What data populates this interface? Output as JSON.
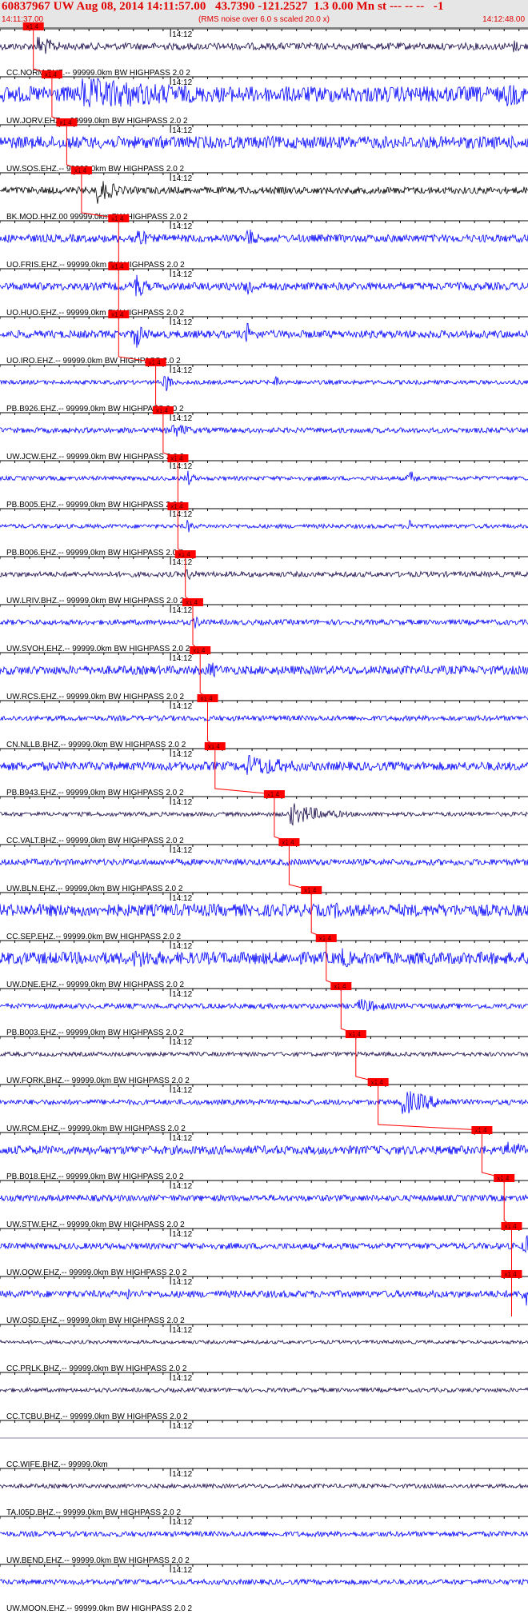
{
  "header": {
    "title": "60837967 UW Aug 08, 2014 14:11:57.00   43.7390 -121.2527  1.3 0.00 Mn st --- -- --   -1",
    "start_time": "14:11:37.00",
    "subtitle": "(RMS noise over 6.0 s scaled 20.0 x)",
    "end_time": "14:12:48.00"
  },
  "colors": {
    "header_text": "#e00000",
    "header_bg": "#e6e6e6",
    "trace_blue": "#0000ff",
    "trace_dark": "#1a0a4a",
    "trace_black": "#000000",
    "pick_box": "#ff0000",
    "pick_line": "#ff0000"
  },
  "chart_data": {
    "type": "seismogram",
    "time_window": {
      "start": "14:11:37.00",
      "end": "14:12:48.00"
    },
    "tick_label": "14:12",
    "pick_label": "x1.4",
    "traces": [
      {
        "label": "CC.NORM.BHZ.-- 99999.0km BW  HIGHPASS  2.0  2",
        "color": "dark",
        "pick": "14:11:41.5",
        "amp": 0.2,
        "burst": [
          {
            "t": "14:11:42",
            "amp": 0.7,
            "dur": 3
          },
          {
            "t": "14:12:46",
            "amp": 0.4,
            "dur": 2
          }
        ]
      },
      {
        "label": "UW.JORV.EHZ.-- 99999.0km BW  HIGHPASS  2.0  2",
        "color": "blue",
        "pick": "14:11:44",
        "amp": 0.45,
        "burst": [
          {
            "t": "14:11:48",
            "amp": 1.0,
            "dur": 20
          },
          {
            "t": "14:12:45",
            "amp": 0.9,
            "dur": 3
          }
        ]
      },
      {
        "label": "UW.SOS.EHZ.-- 99999.0km BW  HIGHPASS  2.0  2",
        "color": "blue",
        "pick": "14:11:46",
        "amp": 0.35,
        "burst": []
      },
      {
        "label": "BK.MOD.HHZ.00 99999.0km BW  HIGHPASS  2.0  2",
        "color": "black",
        "pick": "14:11:48",
        "amp": 0.2,
        "burst": [
          {
            "t": "14:11:50",
            "amp": 0.8,
            "dur": 3
          }
        ]
      },
      {
        "label": "UO.FRIS.EHZ.-- 99999.0km BW  HIGHPASS  2.0  2",
        "color": "blue",
        "pick": "14:11:53",
        "amp": 0.22,
        "burst": [
          {
            "t": "14:11:55",
            "amp": 1.0,
            "dur": 1.5
          },
          {
            "t": "14:12:10",
            "amp": 0.8,
            "dur": 1.5
          }
        ]
      },
      {
        "label": "UO.HUO.EHZ.-- 99999.0km BW  HIGHPASS  2.0  2",
        "color": "blue",
        "pick": "14:11:53",
        "amp": 0.22,
        "burst": [
          {
            "t": "14:11:55",
            "amp": 1.0,
            "dur": 1.5
          },
          {
            "t": "14:12:10",
            "amp": 0.8,
            "dur": 1.5
          }
        ]
      },
      {
        "label": "UO.IRO.EHZ.-- 99999.0km BW  HIGHPASS  2.0  2",
        "color": "blue",
        "pick": "14:11:53",
        "amp": 0.22,
        "burst": [
          {
            "t": "14:11:55",
            "amp": 1.0,
            "dur": 1.5
          },
          {
            "t": "14:12:10",
            "amp": 0.8,
            "dur": 1.5
          }
        ]
      },
      {
        "label": "PB.B926.EHZ.-- 99999.0km BW  HIGHPASS  2.0  2",
        "color": "blue",
        "pick": "14:11:58",
        "amp": 0.12,
        "burst": [
          {
            "t": "14:11:59",
            "amp": 0.8,
            "dur": 1
          },
          {
            "t": "14:12:14",
            "amp": 0.5,
            "dur": 1
          }
        ]
      },
      {
        "label": "UW.JCW.EHZ.-- 99999.0km BW  HIGHPASS  2.0  2",
        "color": "blue",
        "pick": "14:11:59",
        "amp": 0.15,
        "burst": [
          {
            "t": "14:12:00",
            "amp": 0.5,
            "dur": 3
          }
        ]
      },
      {
        "label": "PB.B005.EHZ.-- 99999.0km BW  HIGHPASS  2.0  2",
        "color": "blue",
        "pick": "14:12:01",
        "amp": 0.12,
        "burst": [
          {
            "t": "14:12:02",
            "amp": 0.6,
            "dur": 1
          },
          {
            "t": "14:12:32",
            "amp": 0.6,
            "dur": 1
          }
        ]
      },
      {
        "label": "PB.B006.EHZ.-- 99999.0km BW  HIGHPASS  2.0  2",
        "color": "blue",
        "pick": "14:12:01",
        "amp": 0.12,
        "burst": [
          {
            "t": "14:12:02",
            "amp": 0.5,
            "dur": 1
          },
          {
            "t": "14:12:32",
            "amp": 0.5,
            "dur": 1
          }
        ]
      },
      {
        "label": "UW.LRIV.BHZ.-- 99999.0km BW  HIGHPASS  2.0  2",
        "color": "dark",
        "pick": "14:12:02",
        "amp": 0.15,
        "burst": [
          {
            "t": "14:12:02",
            "amp": 0.4,
            "dur": 2
          }
        ]
      },
      {
        "label": "UW.SVOH.EHZ.-- 99999.0km BW  HIGHPASS  2.0  2",
        "color": "blue",
        "pick": "14:12:03",
        "amp": 0.15,
        "burst": [
          {
            "t": "14:12:03",
            "amp": 0.4,
            "dur": 2
          }
        ]
      },
      {
        "label": "UW.RCS.EHZ.-- 99999.0km BW  HIGHPASS  2.0  2",
        "color": "blue",
        "pick": "14:12:04",
        "amp": 0.25,
        "burst": [
          {
            "t": "14:12:05",
            "amp": 0.6,
            "dur": 2
          }
        ]
      },
      {
        "label": "CN.NLLB.BHZ.-- 99999.0km BW  HIGHPASS  2.0  2",
        "color": "blue",
        "pick": "14:12:05",
        "amp": 0.15,
        "burst": []
      },
      {
        "label": "PB.B943.EHZ.-- 99999.0km BW  HIGHPASS  2.0  2",
        "color": "blue",
        "pick": "14:12:06",
        "amp": 0.25,
        "burst": [
          {
            "t": "14:12:10",
            "amp": 0.7,
            "dur": 8
          }
        ]
      },
      {
        "label": "CC.VALT.BHZ.-- 99999.0km BW  HIGHPASS  2.0  2",
        "color": "dark",
        "pick": "14:12:14",
        "amp": 0.12,
        "burst": [
          {
            "t": "14:12:16",
            "amp": 0.7,
            "dur": 5
          }
        ]
      },
      {
        "label": "UW.BLN.EHZ.-- 99999.0km BW  HIGHPASS  2.0  2",
        "color": "blue",
        "pick": "14:12:16",
        "amp": 0.18,
        "burst": []
      },
      {
        "label": "CC.SEP.EHZ.-- 99999.0km BW  HIGHPASS  2.0  2",
        "color": "blue",
        "pick": "14:12:19",
        "amp": 0.35,
        "burst": [
          {
            "t": "14:12:22",
            "amp": 0.5,
            "dur": 3
          }
        ]
      },
      {
        "label": "UW.DNE.EHZ.-- 99999.0km BW  HIGHPASS  2.0  2",
        "color": "blue",
        "pick": "14:12:21",
        "amp": 0.35,
        "burst": [
          {
            "t": "14:11:55",
            "amp": 0.6,
            "dur": 8
          },
          {
            "t": "14:12:23",
            "amp": 0.7,
            "dur": 2
          }
        ]
      },
      {
        "label": "PB.B003.EHZ.-- 99999.0km BW  HIGHPASS  2.0  2",
        "color": "blue",
        "pick": "14:12:23",
        "amp": 0.15,
        "burst": [
          {
            "t": "14:12:25",
            "amp": 0.5,
            "dur": 4
          }
        ]
      },
      {
        "label": "UW.FORK.BHZ.-- 99999.0km BW  HIGHPASS  2.0  2",
        "color": "dark",
        "pick": "14:12:25",
        "amp": 0.12,
        "burst": []
      },
      {
        "label": "UW.RCM.EHZ.-- 99999.0km BW  HIGHPASS  2.0  2",
        "color": "blue",
        "pick": "14:12:28",
        "amp": 0.15,
        "burst": [
          {
            "t": "14:12:31",
            "amp": 0.8,
            "dur": 5
          }
        ]
      },
      {
        "label": "PB.B018.EHZ.-- 99999.0km BW  HIGHPASS  2.0  2",
        "color": "blue",
        "pick": "14:12:42",
        "amp": 0.25,
        "burst": [
          {
            "t": "14:12:45",
            "amp": 0.6,
            "dur": 4
          }
        ]
      },
      {
        "label": "UW.STW.EHZ.-- 99999.0km BW  HIGHPASS  2.0  2",
        "color": "blue",
        "pick": "14:12:45",
        "amp": 0.18,
        "burst": []
      },
      {
        "label": "UW.OOW.EHZ.-- 99999.0km BW  HIGHPASS  2.0  2",
        "color": "blue",
        "pick": "14:12:46",
        "amp": 0.18,
        "burst": [
          {
            "t": "14:12:47.5",
            "amp": 1.0,
            "dur": 1
          }
        ]
      },
      {
        "label": "UW.OSD.EHZ.-- 99999.0km BW  HIGHPASS  2.0  2",
        "color": "blue",
        "pick": "14:12:46",
        "amp": 0.2,
        "burst": [
          {
            "t": "14:11:54",
            "amp": 0.5,
            "dur": 1
          },
          {
            "t": "14:12:47.5",
            "amp": 1.0,
            "dur": 1
          }
        ]
      },
      {
        "label": "CC.PRLK.BHZ.-- 99999.0km BW  HIGHPASS  2.0  2",
        "color": "dark",
        "pick": null,
        "amp": 0.1,
        "burst": []
      },
      {
        "label": "CC.TCBU.BHZ.-- 99999.0km BW  HIGHPASS  2.0  2",
        "color": "dark",
        "pick": null,
        "amp": 0.12,
        "burst": []
      },
      {
        "label": "CC.WIFE.BHZ.-- 99999.0km",
        "color": "dark",
        "pick": null,
        "amp": 0.0,
        "burst": []
      },
      {
        "label": "TA.I05D.BHZ.-- 99999.0km BW  HIGHPASS  2.0  2",
        "color": "dark",
        "pick": null,
        "amp": 0.12,
        "burst": []
      },
      {
        "label": "UW.BEND.EHZ.-- 99999.0km BW  HIGHPASS  2.0  2",
        "color": "blue",
        "pick": null,
        "amp": 0.15,
        "burst": []
      },
      {
        "label": "UW.MOON.EHZ.-- 99999.0km BW  HIGHPASS  2.0  2",
        "color": "blue",
        "pick": null,
        "amp": 0.15,
        "burst": []
      }
    ]
  }
}
